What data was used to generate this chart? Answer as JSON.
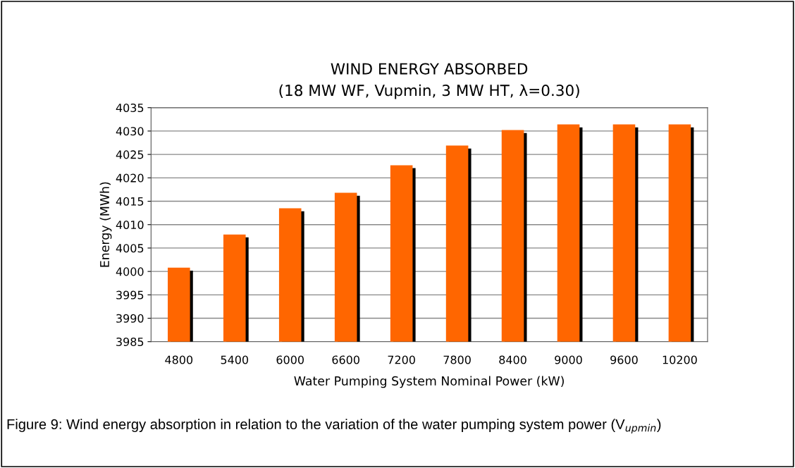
{
  "chart_data": {
    "type": "bar",
    "title": "WIND ENERGY ABSORBED\n(18 MW WF, Vupmin, 3 MW HT, λ=0.30)",
    "xlabel": "Water Pumping System Nominal Power (kW)",
    "ylabel": "Energy (MWh)",
    "categories": [
      "4800",
      "5400",
      "6000",
      "6600",
      "7200",
      "7800",
      "8400",
      "9000",
      "9600",
      "10200"
    ],
    "values": [
      4000.8,
      4007.9,
      4013.5,
      4016.8,
      4022.7,
      4026.9,
      4030.2,
      4031.4,
      4031.4,
      4031.4
    ],
    "color": "#ff6600",
    "ylim": [
      3985,
      4035
    ],
    "yticks": [
      3985,
      3990,
      3995,
      4000,
      4005,
      4010,
      4015,
      4020,
      4025,
      4030,
      4035
    ],
    "grid": "y",
    "annotations": [
      "Figure 9: Wind energy absorption in relation to the variation of the water pumping system power (V$_{upmin}$)"
    ]
  }
}
